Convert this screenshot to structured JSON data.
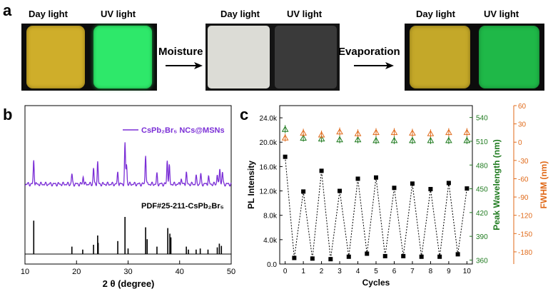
{
  "panel_a": {
    "letter": "a",
    "columns": [
      {
        "day": "Day light",
        "uv": "UV light"
      },
      {
        "day": "Day light",
        "uv": "UV light"
      },
      {
        "day": "Day light",
        "uv": "UV light"
      }
    ],
    "step1": "Moisture",
    "step2": "Evaporation",
    "colors": {
      "yellow": "#cfae2a",
      "green_bright": "#2ee86a",
      "white": "#dcdcd6",
      "dark_gray": "#3a3a3a",
      "green_dim": "#1fb848"
    }
  },
  "chart_data": [
    {
      "panel": "b",
      "type": "line",
      "xlabel": "2 θ (degree)",
      "xlim": [
        10,
        50
      ],
      "xticks": [
        "10",
        "20",
        "30",
        "40",
        "50"
      ],
      "series": [
        {
          "name": "CsPb₂Br₅ NCs@MSNs",
          "color": "#7b2fd6",
          "peaks": [
            [
              11.7,
              0.6
            ],
            [
              19.1,
              0.25
            ],
            [
              21.3,
              0.2
            ],
            [
              23.3,
              0.4
            ],
            [
              24.1,
              0.55
            ],
            [
              28.0,
              0.3
            ],
            [
              29.4,
              1.0
            ],
            [
              29.7,
              0.5
            ],
            [
              33.4,
              0.75
            ],
            [
              35.6,
              0.25
            ],
            [
              37.6,
              0.6
            ],
            [
              38.0,
              0.45
            ],
            [
              40.3,
              0.15
            ],
            [
              41.3,
              0.3
            ],
            [
              43.2,
              0.2
            ],
            [
              44.1,
              0.25
            ],
            [
              45.6,
              0.2
            ],
            [
              47.3,
              0.25
            ],
            [
              47.8,
              0.4
            ],
            [
              48.3,
              0.3
            ]
          ]
        },
        {
          "name": "PDF#25-211-CsPb₂Br₅",
          "color": "#000000",
          "sticks": [
            [
              11.7,
              0.9
            ],
            [
              19.1,
              0.2
            ],
            [
              21.2,
              0.12
            ],
            [
              23.3,
              0.25
            ],
            [
              24.1,
              0.5
            ],
            [
              24.2,
              0.3
            ],
            [
              28.0,
              0.35
            ],
            [
              29.4,
              1.0
            ],
            [
              30.0,
              0.15
            ],
            [
              33.4,
              0.72
            ],
            [
              33.7,
              0.4
            ],
            [
              35.6,
              0.2
            ],
            [
              37.7,
              0.7
            ],
            [
              38.1,
              0.55
            ],
            [
              38.3,
              0.45
            ],
            [
              41.3,
              0.2
            ],
            [
              41.7,
              0.12
            ],
            [
              43.2,
              0.12
            ],
            [
              44.0,
              0.15
            ],
            [
              45.5,
              0.12
            ],
            [
              47.3,
              0.18
            ],
            [
              47.7,
              0.28
            ],
            [
              48.1,
              0.22
            ]
          ]
        }
      ]
    },
    {
      "panel": "c",
      "type": "scatter",
      "xlabel": "Cycles",
      "ylabel": "PL Intensity",
      "ylabel2": "Peak Wavelength (nm)",
      "ylabel3": "FWHM (nm)",
      "x": [
        0,
        1,
        2,
        3,
        4,
        5,
        6,
        7,
        8,
        9,
        10
      ],
      "xlim": [
        -0.3,
        10.3
      ],
      "ylim": [
        0,
        26000
      ],
      "yticks": [
        "0.0",
        "4.0k",
        "8.0k",
        "12.0k",
        "16.0k",
        "20.0k",
        "24.0k"
      ],
      "y2lim": [
        355,
        555
      ],
      "y2ticks": [
        "360",
        "390",
        "420",
        "450",
        "480",
        "510",
        "540"
      ],
      "y3lim": [
        -200,
        60
      ],
      "y3ticks": [
        "-180",
        "-150",
        "-120",
        "-90",
        "-60",
        "-30",
        "0",
        "30",
        "60"
      ],
      "pl_intensity": {
        "x": [
          0,
          0.5,
          1,
          1.5,
          2,
          2.5,
          3,
          3.5,
          4,
          4.5,
          5,
          5.5,
          6,
          6.5,
          7,
          7.5,
          8,
          8.5,
          9,
          9.5,
          10
        ],
        "y": [
          17600,
          1000,
          11900,
          900,
          15300,
          800,
          12000,
          1200,
          14000,
          1700,
          14200,
          1300,
          12500,
          1300,
          13200,
          1200,
          12300,
          1200,
          13300,
          1600,
          12400
        ]
      },
      "peak_wavelength": [
        525,
        514,
        513,
        512,
        512,
        511,
        511,
        511,
        511,
        511,
        511
      ],
      "fwhm": [
        7,
        15,
        12,
        17,
        14,
        16,
        16,
        15,
        14,
        16,
        16
      ],
      "colors": {
        "pl": "#000000",
        "wavelength": "#1e7a1e",
        "fwhm": "#e06a1a"
      }
    }
  ]
}
